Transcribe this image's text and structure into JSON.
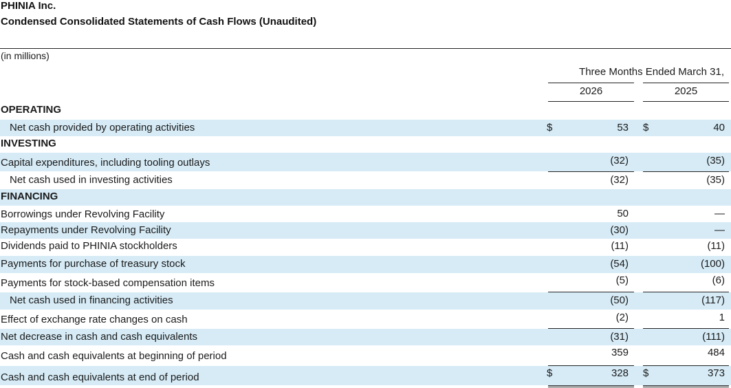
{
  "header": {
    "company": "PHINIA Inc.",
    "statement": "Condensed Consolidated Statements of Cash Flows (Unaudited)",
    "unit": "(in millions)",
    "period": "Three Months Ended March 31,",
    "year_a": "2026",
    "year_b": "2025"
  },
  "rows": [
    {
      "label": "OPERATING",
      "a": "",
      "b": "",
      "head": true
    },
    {
      "label": "Net cash provided by operating activities",
      "a": "53",
      "b": "40",
      "cur_a": "$",
      "cur_b": "$"
    },
    {
      "label": "INVESTING",
      "a": "",
      "b": "",
      "head": true
    },
    {
      "label": "Capital expenditures, including tooling outlays",
      "a": "(32)",
      "b": "(35)"
    },
    {
      "label": "Net cash used in investing activities",
      "a": "(32)",
      "b": "(35)"
    },
    {
      "label": "FINANCING",
      "a": "",
      "b": "",
      "head": true
    },
    {
      "label": "Borrowings under Revolving Facility",
      "a": "50",
      "b": "—"
    },
    {
      "label": "Repayments under Revolving Facility",
      "a": "(30)",
      "b": "—"
    },
    {
      "label": "Dividends paid to PHINIA stockholders",
      "a": "(11)",
      "b": "(11)"
    },
    {
      "label": "Payments for purchase of treasury stock",
      "a": "(54)",
      "b": "(100)"
    },
    {
      "label": "Payments for stock-based compensation items",
      "a": "(5)",
      "b": "(6)"
    },
    {
      "label": "Net cash used in financing activities",
      "a": "(50)",
      "b": "(117)"
    },
    {
      "label": "Effect of exchange rate changes on cash",
      "a": "(2)",
      "b": "1"
    },
    {
      "label": "Net decrease in cash and cash equivalents",
      "a": "(31)",
      "b": "(111)"
    },
    {
      "label": "Cash and cash equivalents at beginning of period",
      "a": "359",
      "b": "484"
    },
    {
      "label": "Cash and cash equivalents at end of period",
      "a": "328",
      "b": "373",
      "cur_a": "$",
      "cur_b": "$"
    }
  ]
}
